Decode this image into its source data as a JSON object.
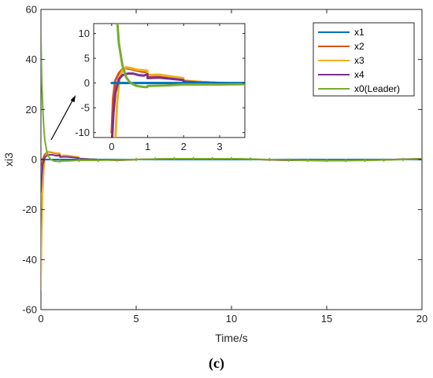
{
  "chart_data": [
    {
      "type": "line",
      "role": "main",
      "xlabel": "Time/s",
      "ylabel": "xi3",
      "xlim": [
        0,
        20
      ],
      "ylim": [
        -60,
        60
      ],
      "xticks": [
        "0",
        "5",
        "10",
        "15",
        "20"
      ],
      "yticks": [
        "-60",
        "-40",
        "-20",
        "0",
        "20",
        "40",
        "60"
      ],
      "grid": false,
      "legend_position": "top-right",
      "series": [
        {
          "name": "x1",
          "color": "#0072BD",
          "x": [
            0,
            0.5,
            1,
            2,
            3,
            5,
            10,
            15,
            20
          ],
          "y": [
            0,
            0,
            0,
            0,
            0,
            0,
            0,
            0,
            0
          ]
        },
        {
          "name": "x2",
          "color": "#D95319",
          "x": [
            0,
            0.04,
            0.1,
            0.2,
            0.3,
            0.4,
            0.55,
            0.7,
            0.85,
            0.99,
            1.0,
            1.3,
            1.6,
            1.99,
            2.0,
            2.5,
            3,
            4,
            5,
            7,
            10,
            13,
            15,
            17,
            20
          ],
          "y": [
            -10,
            -3,
            0.5,
            2.0,
            2.8,
            3.0,
            2.8,
            2.5,
            2.3,
            2.2,
            1.4,
            1.5,
            1.2,
            0.8,
            0.4,
            0.2,
            0,
            -0.3,
            0,
            0.3,
            0.3,
            -0.3,
            -0.4,
            -0.3,
            0.3
          ]
        },
        {
          "name": "x3",
          "color": "#EDB120",
          "x": [
            0,
            0.03,
            0.08,
            0.15,
            0.22,
            0.3,
            0.4,
            0.55,
            0.7,
            0.85,
            0.99,
            1.0,
            1.3,
            1.6,
            1.99,
            2.0,
            2.5,
            3,
            4,
            5,
            7,
            10,
            13,
            15,
            17,
            20
          ],
          "y": [
            -52,
            -35,
            -15,
            -4,
            1,
            2.6,
            3.2,
            3.0,
            2.7,
            2.6,
            2.5,
            1.6,
            1.7,
            1.4,
            1.0,
            0.5,
            0.2,
            0,
            -0.3,
            0,
            0.3,
            0.3,
            -0.3,
            -0.4,
            -0.3,
            0.3
          ]
        },
        {
          "name": "x4",
          "color": "#7E2F8E",
          "x": [
            0,
            0.05,
            0.1,
            0.2,
            0.3,
            0.45,
            0.6,
            0.75,
            0.9,
            0.99,
            1.0,
            1.3,
            1.6,
            1.99,
            2.0,
            2.5,
            3,
            4,
            5,
            7,
            10,
            13,
            15,
            17,
            20
          ],
          "y": [
            -13,
            -6,
            -2,
            0.8,
            1.6,
            1.9,
            1.9,
            1.6,
            1.5,
            1.8,
            1.0,
            1.1,
            0.9,
            0.6,
            0.3,
            0.1,
            0,
            -0.3,
            0,
            0.3,
            0.3,
            -0.3,
            -0.4,
            -0.3,
            0.3
          ]
        },
        {
          "name": "x0(Leader)",
          "color": "#77AC30",
          "x": [
            0,
            0.02,
            0.05,
            0.1,
            0.15,
            0.2,
            0.3,
            0.4,
            0.5,
            0.6,
            0.7,
            0.8,
            0.9,
            0.99,
            1.0,
            1.5,
            2,
            3,
            4,
            5,
            6,
            7,
            8,
            9,
            10,
            11,
            12,
            13,
            14,
            15,
            16,
            17,
            18,
            19,
            20
          ],
          "y": [
            50,
            40,
            30,
            20,
            13,
            8,
            3.5,
            1.2,
            0.2,
            -0.3,
            -0.6,
            -0.7,
            -0.8,
            -0.8,
            -0.6,
            -0.5,
            -0.3,
            -0.3,
            -0.2,
            0,
            0.2,
            0.3,
            0.3,
            0.3,
            0.3,
            0.2,
            0,
            -0.2,
            -0.3,
            -0.4,
            -0.4,
            -0.3,
            -0.2,
            0,
            0.3
          ]
        }
      ]
    },
    {
      "type": "line",
      "role": "inset",
      "xlim": [
        -0.5,
        3.7
      ],
      "ylim": [
        -11,
        12
      ],
      "xticks": [
        "0",
        "1",
        "2",
        "3"
      ],
      "yticks": [
        "-10",
        "-5",
        "0",
        "5",
        "10"
      ],
      "grid": false
    }
  ],
  "legend": {
    "entries": [
      "x1",
      "x2",
      "x3",
      "x4",
      "x0(Leader)"
    ]
  },
  "caption": "(c)",
  "colors": {
    "x1": "#0072BD",
    "x2": "#D95319",
    "x3": "#EDB120",
    "x4": "#7E2F8E",
    "x0": "#77AC30"
  }
}
